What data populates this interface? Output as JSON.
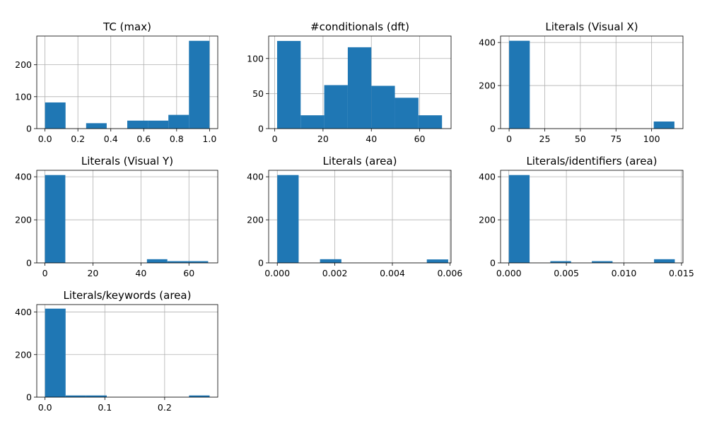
{
  "colors": {
    "bar": "#1f77b4",
    "grid": "#b0b0b0",
    "axes": "#000000",
    "background": "#ffffff"
  },
  "chart_data": [
    {
      "type": "bar",
      "title": "TC (max)",
      "grid": true,
      "xlim": [
        -0.05,
        1.05
      ],
      "ylim": [
        0,
        290
      ],
      "xticks": [
        0.0,
        0.2,
        0.4,
        0.6,
        0.8,
        1.0
      ],
      "xtick_labels": [
        "0.0",
        "0.2",
        "0.4",
        "0.6",
        "0.8",
        "1.0"
      ],
      "yticks": [
        0,
        100,
        200
      ],
      "ytick_labels": [
        "0",
        "100",
        "200"
      ],
      "bins": [
        0,
        0.125,
        0.25,
        0.375,
        0.5,
        0.625,
        0.75,
        0.875,
        1.0
      ],
      "counts": [
        82,
        0,
        17,
        0,
        25,
        25,
        43,
        275
      ]
    },
    {
      "type": "bar",
      "title": "#conditionals (dft)",
      "grid": true,
      "xlim": [
        -2.5,
        73
      ],
      "ylim": [
        0,
        132
      ],
      "xticks": [
        0,
        20,
        40,
        60
      ],
      "xtick_labels": [
        "0",
        "20",
        "40",
        "60"
      ],
      "yticks": [
        0,
        50,
        100
      ],
      "ytick_labels": [
        "0",
        "50",
        "100"
      ],
      "bins": [
        1,
        10.75,
        20.5,
        30.25,
        40,
        49.75,
        59.5,
        69.25
      ],
      "counts": [
        125,
        19,
        62,
        116,
        61,
        44,
        19
      ]
    },
    {
      "type": "bar",
      "title": "Literals (Visual X)",
      "grid": true,
      "xlim": [
        -6,
        122
      ],
      "ylim": [
        0,
        430
      ],
      "xticks": [
        0,
        25,
        50,
        75,
        100
      ],
      "xtick_labels": [
        "0",
        "25",
        "50",
        "75",
        "100"
      ],
      "yticks": [
        0,
        200,
        400
      ],
      "ytick_labels": [
        "0",
        "200",
        "400"
      ],
      "bins": [
        0,
        14.5,
        29,
        43.5,
        58,
        72.5,
        87,
        101.5,
        116
      ],
      "counts": [
        408,
        0,
        0,
        0,
        0,
        0,
        0,
        33
      ]
    },
    {
      "type": "bar",
      "title": "Literals (Visual Y)",
      "grid": true,
      "xlim": [
        -3.4,
        72
      ],
      "ylim": [
        0,
        430
      ],
      "xticks": [
        0,
        20,
        40,
        60
      ],
      "xtick_labels": [
        "0",
        "20",
        "40",
        "60"
      ],
      "yticks": [
        0,
        200,
        400
      ],
      "ytick_labels": [
        "0",
        "200",
        "400"
      ],
      "bins": [
        0,
        8.5,
        17,
        25.5,
        34,
        42.5,
        51,
        59.5,
        68
      ],
      "counts": [
        408,
        0,
        0,
        0,
        0,
        17,
        8,
        8
      ]
    },
    {
      "type": "bar",
      "title": "Literals (area)",
      "grid": true,
      "xlim": [
        -0.0003,
        0.00604
      ],
      "ylim": [
        0,
        430
      ],
      "xticks": [
        0.0,
        0.002,
        0.004,
        0.006
      ],
      "xtick_labels": [
        "0.000",
        "0.002",
        "0.004",
        "0.006"
      ],
      "yticks": [
        0,
        200,
        400
      ],
      "ytick_labels": [
        "0",
        "200",
        "400"
      ],
      "bins": [
        0,
        0.0007425,
        0.001485,
        0.0022275,
        0.00297,
        0.0037125,
        0.004455,
        0.0051975,
        0.00594
      ],
      "counts": [
        408,
        0,
        17,
        0,
        0,
        0,
        0,
        16
      ]
    },
    {
      "type": "bar",
      "title": "Literals/identifiers (area)",
      "grid": true,
      "xlim": [
        -0.00072,
        0.01513
      ],
      "ylim": [
        0,
        430
      ],
      "xticks": [
        0.0,
        0.005,
        0.01,
        0.015
      ],
      "xtick_labels": [
        "0.000",
        "0.005",
        "0.010",
        "0.015"
      ],
      "yticks": [
        0,
        200,
        400
      ],
      "ytick_labels": [
        "0",
        "200",
        "400"
      ],
      "bins": [
        0,
        0.0018025,
        0.003605,
        0.0054075,
        0.00721,
        0.0090125,
        0.010815,
        0.0126175,
        0.01442
      ],
      "counts": [
        408,
        0,
        8,
        0,
        8,
        0,
        0,
        17
      ]
    },
    {
      "type": "bar",
      "title": "Literals/keywords (area)",
      "grid": true,
      "xlim": [
        -0.0138,
        0.2888
      ],
      "ylim": [
        0,
        435
      ],
      "xticks": [
        0.0,
        0.1,
        0.2
      ],
      "xtick_labels": [
        "0.0",
        "0.1",
        "0.2"
      ],
      "yticks": [
        0,
        200,
        400
      ],
      "ytick_labels": [
        "0",
        "200",
        "400"
      ],
      "bins": [
        0,
        0.0344,
        0.0688,
        0.1032,
        0.1376,
        0.172,
        0.2064,
        0.2408,
        0.2752
      ],
      "counts": [
        416,
        8,
        8,
        0,
        0,
        0,
        0,
        8
      ]
    }
  ]
}
